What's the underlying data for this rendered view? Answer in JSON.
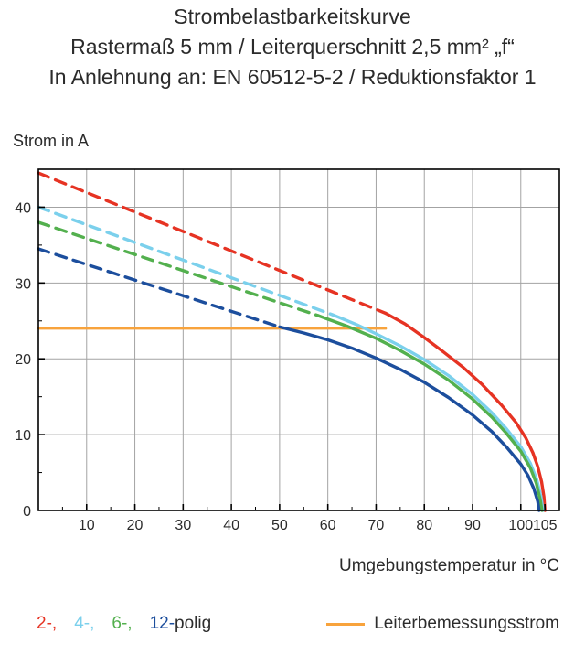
{
  "chart_data": {
    "type": "line",
    "title": "Strombelastbarkeitskurve",
    "subtitle": "Rastermaß 5 mm / Leiterquerschnitt 2,5 mm² „f“",
    "subtitle2": "In Anlehnung an: EN 60512-5-2 / Reduktionsfaktor 1",
    "ylabel": "Strom in A",
    "xlabel": "Umgebungstemperatur in °C",
    "xlim": [
      0,
      108
    ],
    "ylim": [
      0,
      45
    ],
    "xticks": [
      10,
      20,
      30,
      40,
      50,
      60,
      70,
      80,
      90,
      100,
      105
    ],
    "yticks": [
      0,
      10,
      20,
      30,
      40
    ],
    "minor_step_x": 5,
    "minor_step_y": 5,
    "grid": true,
    "grid_color": "#a3a3a3",
    "axis_color": "#000000",
    "series": [
      {
        "name": "Leiterbemessungsstrom",
        "color": "#f8a33c",
        "dashed": false,
        "width": 2.6,
        "points": [
          [
            0,
            24
          ],
          [
            72,
            24
          ]
        ]
      },
      {
        "name": "2-polig Reduktion",
        "color": "#e63323",
        "dashed": true,
        "width": 3.4,
        "points": [
          [
            0,
            44.5
          ],
          [
            72,
            26
          ]
        ]
      },
      {
        "name": "2-polig",
        "color": "#e63323",
        "dashed": false,
        "width": 3.4,
        "points": [
          [
            72,
            26
          ],
          [
            76,
            24.6
          ],
          [
            80,
            22.8
          ],
          [
            84,
            20.9
          ],
          [
            88,
            18.9
          ],
          [
            92,
            16.6
          ],
          [
            96,
            13.9
          ],
          [
            99,
            11.6
          ],
          [
            101,
            9.6
          ],
          [
            102.5,
            7.6
          ],
          [
            103.5,
            5.8
          ],
          [
            104.3,
            3.8
          ],
          [
            104.8,
            1.8
          ],
          [
            105,
            0
          ]
        ]
      },
      {
        "name": "4-polig Reduktion",
        "color": "#7bd0ec",
        "dashed": true,
        "width": 3.4,
        "points": [
          [
            0,
            40
          ],
          [
            61,
            25.8
          ]
        ]
      },
      {
        "name": "4-polig",
        "color": "#7bd0ec",
        "dashed": false,
        "width": 3.4,
        "points": [
          [
            61,
            25.8
          ],
          [
            66,
            24.5
          ],
          [
            70,
            23.3
          ],
          [
            75,
            21.7
          ],
          [
            80,
            19.9
          ],
          [
            85,
            17.8
          ],
          [
            90,
            15.3
          ],
          [
            94,
            12.9
          ],
          [
            97,
            10.8
          ],
          [
            100,
            8.4
          ],
          [
            102,
            6.2
          ],
          [
            103.3,
            4.1
          ],
          [
            104.2,
            1.8
          ],
          [
            104.6,
            0
          ]
        ]
      },
      {
        "name": "6-polig Reduktion",
        "color": "#53b04e",
        "dashed": true,
        "width": 3.4,
        "points": [
          [
            0,
            38
          ],
          [
            58,
            25.7
          ]
        ]
      },
      {
        "name": "6-polig",
        "color": "#53b04e",
        "dashed": false,
        "width": 3.4,
        "points": [
          [
            58,
            25.7
          ],
          [
            64,
            24.3
          ],
          [
            70,
            22.7
          ],
          [
            75,
            21.1
          ],
          [
            80,
            19.3
          ],
          [
            85,
            17.2
          ],
          [
            90,
            14.7
          ],
          [
            94,
            12.3
          ],
          [
            97,
            10.2
          ],
          [
            100,
            7.8
          ],
          [
            102,
            5.6
          ],
          [
            103.2,
            3.6
          ],
          [
            104,
            1.5
          ],
          [
            104.4,
            0
          ]
        ]
      },
      {
        "name": "12-polig Reduktion",
        "color": "#1c4e9d",
        "dashed": true,
        "width": 3.4,
        "points": [
          [
            0,
            34.5
          ],
          [
            50,
            24.2
          ]
        ]
      },
      {
        "name": "12-polig",
        "color": "#1c4e9d",
        "dashed": false,
        "width": 3.4,
        "points": [
          [
            50,
            24.2
          ],
          [
            55,
            23.4
          ],
          [
            60,
            22.5
          ],
          [
            65,
            21.4
          ],
          [
            70,
            20.1
          ],
          [
            75,
            18.6
          ],
          [
            80,
            16.9
          ],
          [
            85,
            14.9
          ],
          [
            90,
            12.6
          ],
          [
            94,
            10.4
          ],
          [
            97,
            8.4
          ],
          [
            100,
            6.1
          ],
          [
            101.5,
            4.6
          ],
          [
            102.7,
            2.9
          ],
          [
            103.5,
            1.2
          ],
          [
            103.8,
            0
          ]
        ]
      }
    ]
  },
  "legend": {
    "pole_items": [
      {
        "label": "2-,",
        "color": "#e63323"
      },
      {
        "label": "4-,",
        "color": "#7bd0ec"
      },
      {
        "label": "6-,",
        "color": "#53b04e"
      },
      {
        "label": "12-",
        "color": "#1c4e9d"
      }
    ],
    "suffix": "polig",
    "rated": {
      "label": "Leiterbemessungsstrom",
      "color": "#f8a33c"
    }
  }
}
